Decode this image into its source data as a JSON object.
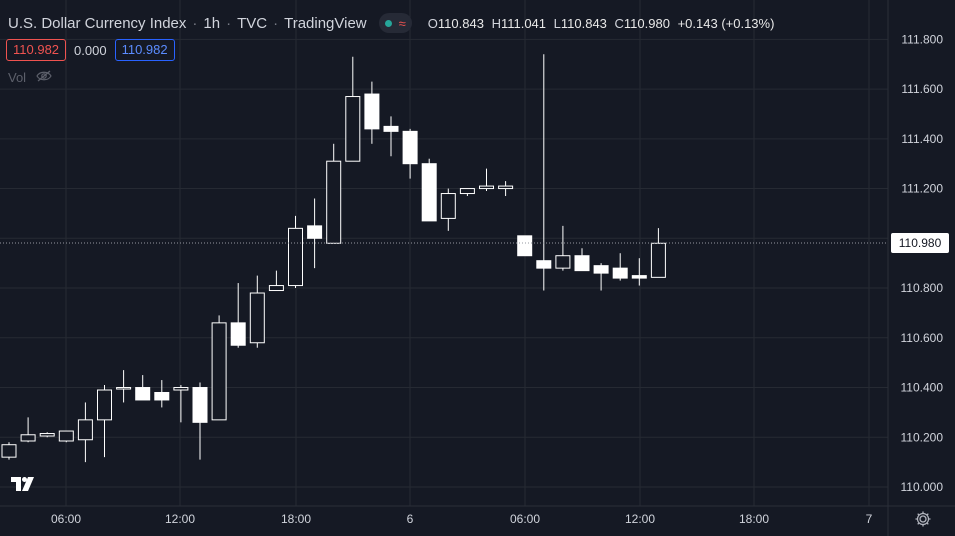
{
  "header": {
    "symbol_name": "U.S. Dollar Currency Index",
    "separator1": "·",
    "interval": "1h",
    "separator2": "·",
    "exchange": "TVC",
    "separator3": "·",
    "source": "TradingView",
    "status_icon": "market-status-dot-icon",
    "wave_icon": "≈",
    "ohlc": {
      "open_label": "O",
      "open_value": "110.843",
      "high_label": "H",
      "high_value": "111.041",
      "low_label": "L",
      "low_value": "110.843",
      "close_label": "C",
      "close_value": "110.980",
      "change": "+0.143 (+0.13%)"
    }
  },
  "bid_ask": {
    "sell": "110.982",
    "spread": "0.000",
    "buy": "110.982"
  },
  "volume": {
    "label": "Vol",
    "icon": "eye-crossed-icon"
  },
  "current_price_label": "110.980",
  "colors": {
    "background": "#151924",
    "grid": "#262a33",
    "up_candle": "#151924",
    "down_candle": "#ffffff",
    "wick": "#ffffff",
    "sell_box": "#ef5350",
    "buy_box": "#2962ff",
    "status_dot": "#26a69a"
  },
  "chart_data": {
    "type": "candlestick",
    "interval": "1h",
    "y_axis": {
      "ticks": [
        "111.800",
        "111.600",
        "111.400",
        "111.200",
        "111.000",
        "110.800",
        "110.600",
        "110.400",
        "110.200",
        "110.000"
      ],
      "ylim": [
        109.96,
        111.9
      ]
    },
    "x_axis": {
      "ticks": [
        "06:00",
        "12:00",
        "18:00",
        "6",
        "06:00",
        "12:00",
        "18:00",
        "7"
      ]
    },
    "last_price": 110.98,
    "candles": [
      {
        "o": 110.12,
        "h": 110.18,
        "l": 110.11,
        "c": 110.17
      },
      {
        "o": 110.185,
        "h": 110.28,
        "l": 110.18,
        "c": 110.21
      },
      {
        "o": 110.205,
        "h": 110.22,
        "l": 110.2,
        "c": 110.215
      },
      {
        "o": 110.185,
        "h": 110.225,
        "l": 110.18,
        "c": 110.225
      },
      {
        "o": 110.19,
        "h": 110.34,
        "l": 110.1,
        "c": 110.27
      },
      {
        "o": 110.27,
        "h": 110.41,
        "l": 110.12,
        "c": 110.39
      },
      {
        "o": 110.395,
        "h": 110.47,
        "l": 110.34,
        "c": 110.4
      },
      {
        "o": 110.4,
        "h": 110.45,
        "l": 110.35,
        "c": 110.35
      },
      {
        "o": 110.38,
        "h": 110.43,
        "l": 110.32,
        "c": 110.35
      },
      {
        "o": 110.39,
        "h": 110.41,
        "l": 110.26,
        "c": 110.4
      },
      {
        "o": 110.4,
        "h": 110.42,
        "l": 110.11,
        "c": 110.26
      },
      {
        "o": 110.27,
        "h": 110.69,
        "l": 110.27,
        "c": 110.66
      },
      {
        "o": 110.66,
        "h": 110.82,
        "l": 110.56,
        "c": 110.57
      },
      {
        "o": 110.58,
        "h": 110.85,
        "l": 110.56,
        "c": 110.78
      },
      {
        "o": 110.79,
        "h": 110.87,
        "l": 110.79,
        "c": 110.81
      },
      {
        "o": 110.81,
        "h": 111.09,
        "l": 110.8,
        "c": 111.04
      },
      {
        "o": 111.05,
        "h": 111.16,
        "l": 110.88,
        "c": 111.0
      },
      {
        "o": 110.98,
        "h": 111.38,
        "l": 110.98,
        "c": 111.31
      },
      {
        "o": 111.31,
        "h": 111.73,
        "l": 111.31,
        "c": 111.57
      },
      {
        "o": 111.58,
        "h": 111.63,
        "l": 111.38,
        "c": 111.44
      },
      {
        "o": 111.45,
        "h": 111.49,
        "l": 111.33,
        "c": 111.43
      },
      {
        "o": 111.43,
        "h": 111.44,
        "l": 111.24,
        "c": 111.3
      },
      {
        "o": 111.3,
        "h": 111.32,
        "l": 111.07,
        "c": 111.07
      },
      {
        "o": 111.08,
        "h": 111.2,
        "l": 111.03,
        "c": 111.18
      },
      {
        "o": 111.18,
        "h": 111.2,
        "l": 111.17,
        "c": 111.2
      },
      {
        "o": 111.2,
        "h": 111.28,
        "l": 111.19,
        "c": 111.21
      },
      {
        "o": 111.2,
        "h": 111.23,
        "l": 111.17,
        "c": 111.21
      },
      {
        "o": 111.01,
        "h": 111.01,
        "l": 110.93,
        "c": 110.93
      },
      {
        "o": 110.91,
        "h": 111.74,
        "l": 110.79,
        "c": 110.88
      },
      {
        "o": 110.88,
        "h": 111.05,
        "l": 110.87,
        "c": 110.93
      },
      {
        "o": 110.93,
        "h": 110.96,
        "l": 110.88,
        "c": 110.87
      },
      {
        "o": 110.89,
        "h": 110.9,
        "l": 110.79,
        "c": 110.86
      },
      {
        "o": 110.88,
        "h": 110.94,
        "l": 110.83,
        "c": 110.84
      },
      {
        "o": 110.85,
        "h": 110.92,
        "l": 110.81,
        "c": 110.84
      },
      {
        "o": 110.843,
        "h": 111.041,
        "l": 110.843,
        "c": 110.98
      }
    ]
  }
}
